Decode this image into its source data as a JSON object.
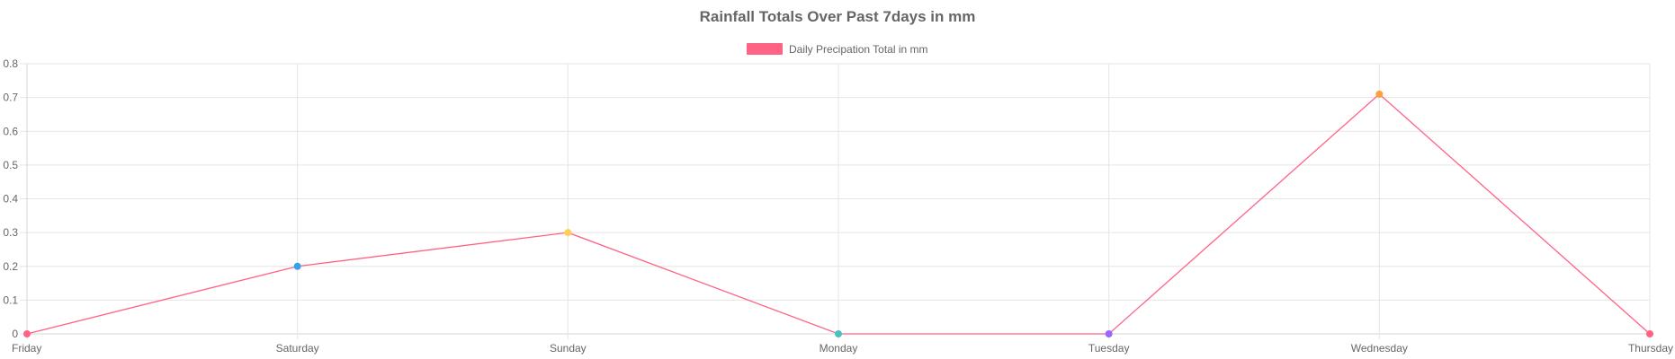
{
  "chart_data": {
    "type": "line",
    "title": "Rainfall Totals Over Past 7days in mm",
    "xlabel": "",
    "ylabel": "",
    "categories": [
      "Friday",
      "Saturday",
      "Sunday",
      "Monday",
      "Tuesday",
      "Wednesday",
      "Thursday"
    ],
    "series": [
      {
        "name": "Daily Precipation Total in mm",
        "values": [
          0,
          0.2,
          0.3,
          0,
          0,
          0.71,
          0
        ],
        "color": "#ff6384",
        "point_colors": [
          "#ff6384",
          "#36a2eb",
          "#ffce56",
          "#4bc0c0",
          "#9966ff",
          "#ff9f40",
          "#ff6384"
        ]
      }
    ],
    "ylim": [
      0,
      0.8
    ],
    "yticks": [
      "0",
      "0.1",
      "0.2",
      "0.3",
      "0.4",
      "0.5",
      "0.6",
      "0.7",
      "0.8"
    ],
    "grid": true,
    "legend_position": "top-center"
  }
}
